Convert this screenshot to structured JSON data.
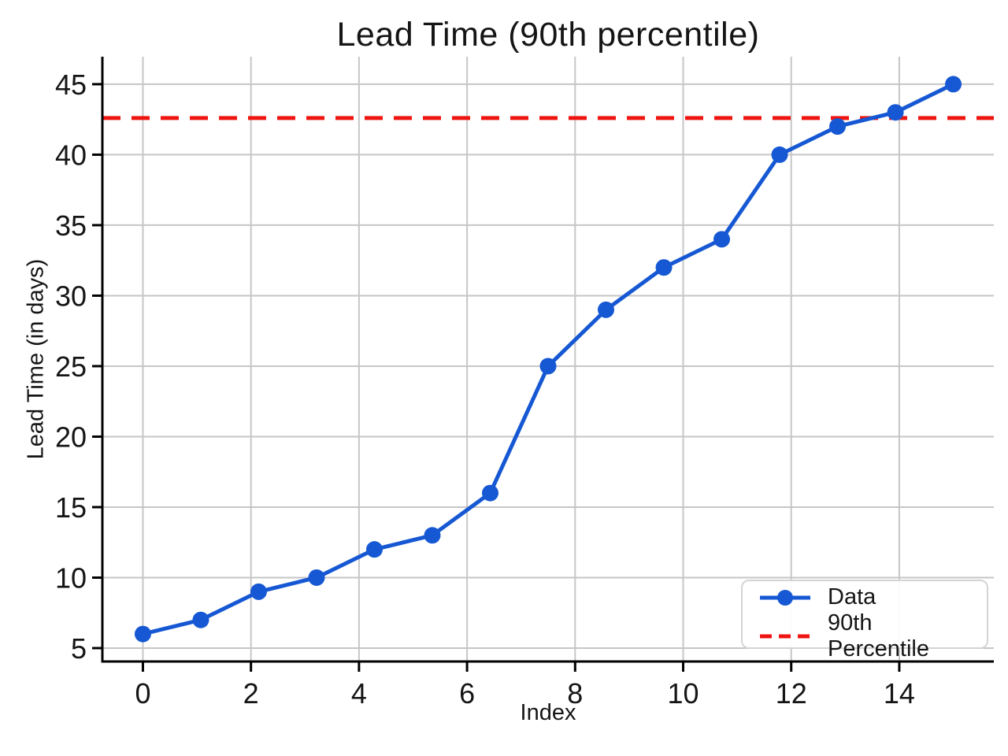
{
  "chart_data": {
    "type": "line",
    "title": "Lead Time (90th percentile)",
    "xlabel": "Index",
    "ylabel": "Lead Time (in days)",
    "x": [
      0,
      1.0714,
      2.1429,
      3.2143,
      4.2857,
      5.3571,
      6.4286,
      7.5,
      8.5714,
      9.6429,
      10.7143,
      11.7857,
      12.8571,
      13.9286,
      15
    ],
    "y": [
      6,
      7,
      9,
      10,
      12,
      13,
      16,
      25,
      29,
      32,
      34,
      40,
      42,
      43,
      45
    ],
    "series_label": "Data",
    "series_color": "#1658d3",
    "percentile_line": {
      "label": "90th Percentile",
      "value": 42.6,
      "color": "#ef1410",
      "style": "dashed"
    },
    "xticks": [
      0,
      2,
      4,
      6,
      8,
      10,
      12,
      14
    ],
    "yticks": [
      5,
      10,
      15,
      20,
      25,
      30,
      35,
      40,
      45
    ],
    "xlim": [
      -0.75,
      15.75
    ],
    "ylim": [
      4.05,
      46.95
    ],
    "grid": true,
    "grid_color": "#c6c6c6",
    "axis_color": "#000000",
    "legend_position": "lower right"
  }
}
